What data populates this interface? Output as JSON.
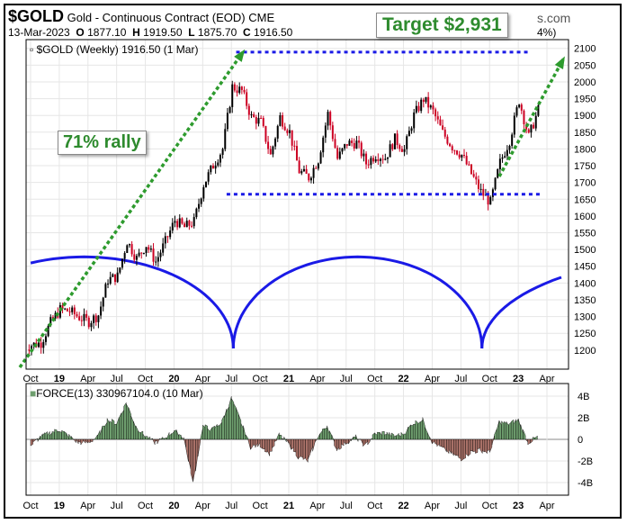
{
  "header": {
    "symbol": "$GOLD",
    "name": "Gold - Continuous Contract (EOD)",
    "exchange": "CME",
    "date": "13-Mar-2023",
    "ohlc": {
      "O": "1877.10",
      "H": "1919.50",
      "L": "1875.70",
      "C": "1916.50"
    },
    "site": "s.com",
    "change_pct": "4%)"
  },
  "main_panel": {
    "label": "$GOLD (Weekly) 1916.50 (1",
    "label_tail": " Mar)"
  },
  "annotations": {
    "target": "Target $2,931",
    "rally": "71% rally"
  },
  "force_panel": {
    "label": "FORCE(13) 330967104.0 (10 Mar)"
  },
  "colors": {
    "up": "#000000",
    "down": "#cc0022",
    "trend_arrow": "#2e9b2e",
    "channel_line": "#1a1ae6",
    "cycle_arcs": "#1a1ae6",
    "force_pos": "#6e9e6e",
    "force_neg": "#a97168"
  },
  "chart_data": [
    {
      "type": "candlestick",
      "title": "$GOLD (Weekly)",
      "x_axis_labels": [
        "Oct",
        "19",
        "Apr",
        "Jul",
        "Oct",
        "20",
        "Apr",
        "Jul",
        "Oct",
        "21",
        "Apr",
        "Jul",
        "Oct",
        "22",
        "Apr",
        "Jul",
        "Oct",
        "23",
        "Apr"
      ],
      "y_axis_labels": [
        "1200",
        "1250",
        "1300",
        "1350",
        "1400",
        "1450",
        "1500",
        "1550",
        "1600",
        "1650",
        "1700",
        "1750",
        "1800",
        "1850",
        "1900",
        "1950",
        "2000",
        "2050",
        "2100"
      ],
      "ylim": [
        1170,
        2110
      ],
      "x_start": "2018-10",
      "points_monthly_close": [
        [
          "2018-10",
          1215
        ],
        [
          "2018-11",
          1222
        ],
        [
          "2018-12",
          1282
        ],
        [
          "2019-01",
          1321
        ],
        [
          "2019-02",
          1316
        ],
        [
          "2019-03",
          1298
        ],
        [
          "2019-04",
          1285
        ],
        [
          "2019-05",
          1305
        ],
        [
          "2019-06",
          1410
        ],
        [
          "2019-07",
          1420
        ],
        [
          "2019-08",
          1525
        ],
        [
          "2019-09",
          1473
        ],
        [
          "2019-10",
          1514
        ],
        [
          "2019-11",
          1464
        ],
        [
          "2019-12",
          1523
        ],
        [
          "2020-01",
          1587
        ],
        [
          "2020-02",
          1566
        ],
        [
          "2020-03",
          1583
        ],
        [
          "2020-04",
          1694
        ],
        [
          "2020-05",
          1751
        ],
        [
          "2020-06",
          1800
        ],
        [
          "2020-07",
          1985
        ],
        [
          "2020-08",
          1973
        ],
        [
          "2020-09",
          1895
        ],
        [
          "2020-10",
          1880
        ],
        [
          "2020-11",
          1780
        ],
        [
          "2020-12",
          1895
        ],
        [
          "2021-01",
          1850
        ],
        [
          "2021-02",
          1734
        ],
        [
          "2021-03",
          1715
        ],
        [
          "2021-04",
          1769
        ],
        [
          "2021-05",
          1905
        ],
        [
          "2021-06",
          1771
        ],
        [
          "2021-07",
          1817
        ],
        [
          "2021-08",
          1818
        ],
        [
          "2021-09",
          1757
        ],
        [
          "2021-10",
          1783
        ],
        [
          "2021-11",
          1774
        ],
        [
          "2021-12",
          1829
        ],
        [
          "2022-01",
          1797
        ],
        [
          "2022-02",
          1900
        ],
        [
          "2022-03",
          1949
        ],
        [
          "2022-04",
          1911
        ],
        [
          "2022-05",
          1848
        ],
        [
          "2022-06",
          1807
        ],
        [
          "2022-07",
          1782
        ],
        [
          "2022-08",
          1726
        ],
        [
          "2022-09",
          1672
        ],
        [
          "2022-10",
          1640
        ],
        [
          "2022-11",
          1759
        ],
        [
          "2022-12",
          1826
        ],
        [
          "2023-01",
          1945
        ],
        [
          "2023-02",
          1836
        ],
        [
          "2023-03",
          1916
        ]
      ],
      "levels": {
        "resistance": 2089,
        "support": 1665
      },
      "annotations": [
        "Target $2,931",
        "71% rally"
      ]
    },
    {
      "type": "area",
      "title": "FORCE(13)",
      "y_axis_labels": [
        "4B",
        "2B",
        "0",
        "-2B",
        "-4B"
      ],
      "ylim": [
        -4.6,
        4.6
      ],
      "points_monthly": [
        [
          "2018-10",
          -0.6
        ],
        [
          "2018-11",
          0.2
        ],
        [
          "2018-12",
          0.6
        ],
        [
          "2019-01",
          0.9
        ],
        [
          "2019-02",
          0.3
        ],
        [
          "2019-03",
          -0.3
        ],
        [
          "2019-04",
          -0.3
        ],
        [
          "2019-05",
          0.2
        ],
        [
          "2019-06",
          1.8
        ],
        [
          "2019-07",
          1.5
        ],
        [
          "2019-08",
          3.4
        ],
        [
          "2019-09",
          1.2
        ],
        [
          "2019-10",
          0.3
        ],
        [
          "2019-11",
          -0.3
        ],
        [
          "2019-12",
          0.1
        ],
        [
          "2020-01",
          0.8
        ],
        [
          "2020-02",
          0.2
        ],
        [
          "2020-03",
          -4.0
        ],
        [
          "2020-04",
          1.2
        ],
        [
          "2020-05",
          0.9
        ],
        [
          "2020-06",
          1.6
        ],
        [
          "2020-07",
          3.8
        ],
        [
          "2020-08",
          1.6
        ],
        [
          "2020-09",
          -0.7
        ],
        [
          "2020-10",
          -0.5
        ],
        [
          "2020-11",
          -1.3
        ],
        [
          "2020-12",
          0.4
        ],
        [
          "2021-01",
          -0.4
        ],
        [
          "2021-02",
          -1.6
        ],
        [
          "2021-03",
          -2.0
        ],
        [
          "2021-04",
          0.2
        ],
        [
          "2021-05",
          1.3
        ],
        [
          "2021-06",
          -0.9
        ],
        [
          "2021-07",
          -0.3
        ],
        [
          "2021-08",
          0.2
        ],
        [
          "2021-09",
          -0.6
        ],
        [
          "2021-10",
          0.5
        ],
        [
          "2021-11",
          0.6
        ],
        [
          "2021-12",
          0.3
        ],
        [
          "2022-01",
          0.5
        ],
        [
          "2022-02",
          1.5
        ],
        [
          "2022-03",
          1.8
        ],
        [
          "2022-04",
          -0.2
        ],
        [
          "2022-05",
          -0.8
        ],
        [
          "2022-06",
          -1.3
        ],
        [
          "2022-07",
          -1.8
        ],
        [
          "2022-08",
          -1.2
        ],
        [
          "2022-09",
          -1.0
        ],
        [
          "2022-10",
          -1.2
        ],
        [
          "2022-11",
          1.6
        ],
        [
          "2022-12",
          1.4
        ],
        [
          "2023-01",
          1.8
        ],
        [
          "2023-02",
          -0.3
        ],
        [
          "2023-03",
          0.2
        ]
      ]
    }
  ]
}
